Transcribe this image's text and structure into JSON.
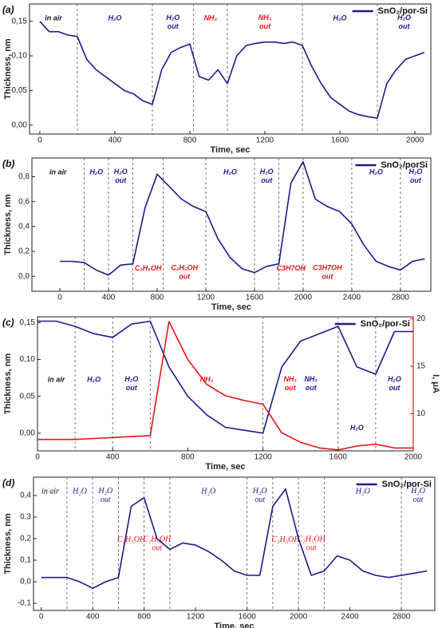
{
  "chart_data": [
    {
      "type": "line",
      "panel_label": "(a)",
      "xlabel": "Time, sec",
      "ylabel": "Thickness, nm",
      "legend": "upper right",
      "x": [
        0,
        50,
        100,
        150,
        200,
        250,
        300,
        350,
        400,
        450,
        500,
        550,
        600,
        650,
        700,
        750,
        800,
        850,
        900,
        950,
        1000,
        1050,
        1100,
        1150,
        1200,
        1250,
        1300,
        1350,
        1400,
        1450,
        1500,
        1550,
        1600,
        1650,
        1700,
        1750,
        1800,
        1850,
        1900,
        1950,
        2000,
        2050
      ],
      "series": [
        {
          "name": "SnO₂/por-Si",
          "color": "#1c1c8a",
          "values": [
            0.15,
            0.135,
            0.135,
            0.13,
            0.128,
            0.095,
            0.08,
            0.07,
            0.06,
            0.05,
            0.045,
            0.035,
            0.03,
            0.08,
            0.105,
            0.112,
            0.117,
            0.07,
            0.065,
            0.08,
            0.06,
            0.1,
            0.115,
            0.118,
            0.12,
            0.12,
            0.118,
            0.12,
            0.115,
            0.085,
            0.06,
            0.04,
            0.03,
            0.02,
            0.015,
            0.012,
            0.01,
            0.06,
            0.08,
            0.095,
            0.1,
            0.105
          ]
        }
      ],
      "xlim": [
        -55,
        2085
      ],
      "xticks": [
        0,
        400,
        800,
        1200,
        1600,
        2000
      ],
      "ylim": [
        -0.013,
        0.175
      ],
      "yticks": [
        {
          "value": 0,
          "label": "0,00"
        },
        {
          "value": 0.05,
          "label": "0,05"
        },
        {
          "value": 0.1,
          "label": "0,10"
        },
        {
          "value": 0.15,
          "label": "0,15"
        }
      ],
      "events": [
        200,
        600,
        820,
        1000,
        1400,
        1800
      ],
      "annotations": [
        [
          {
            "text": "in air",
            "color": "#111111",
            "place": "top"
          }
        ],
        [
          {
            "text": "H₂O",
            "color": "#1c1c8a",
            "place": "top"
          }
        ],
        [
          {
            "text": "H₂O out",
            "color": "#1c1c8a",
            "place": "top",
            "wrap": true
          }
        ],
        [
          {
            "text": "NH₃",
            "color": "#e8141c",
            "place": "top"
          }
        ],
        [
          {
            "text": "NH₃ out",
            "color": "#e8141c",
            "place": "top",
            "wrap": true
          }
        ],
        [
          {
            "text": "H₂O",
            "color": "#1c1c8a",
            "place": "top"
          }
        ],
        [
          {
            "text": "H₂O out",
            "color": "#1c1c8a",
            "place": "top",
            "wrap": true
          }
        ]
      ]
    },
    {
      "type": "line",
      "panel_label": "(b)",
      "xlabel": "Time, sec",
      "ylabel": "Thickness, nm",
      "legend": "upper right",
      "x": [
        0,
        100,
        200,
        300,
        400,
        500,
        600,
        700,
        800,
        900,
        1000,
        1100,
        1200,
        1300,
        1400,
        1500,
        1600,
        1700,
        1800,
        1900,
        2000,
        2100,
        2200,
        2300,
        2400,
        2500,
        2600,
        2700,
        2800,
        2900,
        3000
      ],
      "series": [
        {
          "name": "SnO₂/porSi",
          "color": "#1c1c8a",
          "values": [
            0.12,
            0.12,
            0.11,
            0.05,
            0.01,
            0.09,
            0.1,
            0.55,
            0.82,
            0.72,
            0.62,
            0.56,
            0.52,
            0.3,
            0.15,
            0.06,
            0.03,
            0.08,
            0.1,
            0.75,
            0.92,
            0.62,
            0.56,
            0.52,
            0.42,
            0.25,
            0.12,
            0.08,
            0.05,
            0.12,
            0.14
          ]
        }
      ],
      "xlim": [
        -230,
        3050
      ],
      "xticks": [
        0,
        400,
        800,
        1200,
        1600,
        2000,
        2400,
        2800
      ],
      "ylim": [
        -0.12,
        0.95
      ],
      "yticks": [
        {
          "value": 0,
          "label": "0,0"
        },
        {
          "value": 0.2,
          "label": "0,2"
        },
        {
          "value": 0.4,
          "label": "0,4"
        },
        {
          "value": 0.6,
          "label": "0,6"
        },
        {
          "value": 0.8,
          "label": "0,8"
        }
      ],
      "events": [
        200,
        400,
        600,
        850,
        1200,
        1600,
        1800,
        2000,
        2400,
        2800
      ],
      "annotations": [
        [
          {
            "text": "in air",
            "color": "#111111",
            "place": "top"
          }
        ],
        [
          {
            "text": "H₂O",
            "color": "#1c1c8a",
            "place": "top"
          }
        ],
        [
          {
            "text": "H₂O out",
            "color": "#1c1c8a",
            "place": "top",
            "wrap": true
          }
        ],
        [
          {
            "text": "C₂H₅OH",
            "color": "#e8141c",
            "place": "bottom"
          }
        ],
        [
          {
            "text": "C₂H₅OH out",
            "color": "#e8141c",
            "place": "bottom",
            "wrap": true
          }
        ],
        [
          {
            "text": "H₂O",
            "color": "#1c1c8a",
            "place": "top"
          }
        ],
        [
          {
            "text": "H₂O out",
            "color": "#1c1c8a",
            "place": "top",
            "wrap": true
          }
        ],
        [
          {
            "text": "C3H7OH",
            "color": "#e8141c",
            "place": "bottom"
          }
        ],
        [
          {
            "text": "C3H7OH out",
            "color": "#e8141c",
            "place": "bottom",
            "wrap": true
          }
        ],
        [
          {
            "text": "H₂O",
            "color": "#1c1c8a",
            "place": "top"
          }
        ],
        [
          {
            "text": "H₂O out",
            "color": "#1c1c8a",
            "place": "top",
            "wrap": true
          }
        ]
      ]
    },
    {
      "type": "line",
      "panel_label": "(c)",
      "xlabel": "Time, sec",
      "ylabel": "Thickness, nm",
      "y2label": "I, μA",
      "y2color": "#e8141c",
      "legend": "upper right",
      "x": [
        0,
        100,
        200,
        300,
        400,
        500,
        600,
        700,
        800,
        900,
        1000,
        1100,
        1200,
        1300,
        1400,
        1500,
        1600,
        1700,
        1800,
        1900,
        2000
      ],
      "series": [
        {
          "name": "SnO₂/por-Si",
          "color": "#1c1c8a",
          "values": [
            0.152,
            0.152,
            0.145,
            0.135,
            0.13,
            0.148,
            0.152,
            0.09,
            0.05,
            0.025,
            0.008,
            0.004,
            0.0,
            0.09,
            0.125,
            0.135,
            0.145,
            0.09,
            0.08,
            0.138,
            0.138
          ]
        },
        {
          "color": "#e8141c",
          "axis": "y2",
          "values": [
            7.3,
            7.3,
            7.3,
            7.4,
            7.5,
            7.6,
            7.7,
            19.7,
            15.7,
            13.1,
            11.9,
            11.4,
            11.0,
            8.0,
            7.0,
            6.4,
            6.2,
            6.6,
            6.8,
            6.4,
            6.4
          ]
        }
      ],
      "xlim": [
        0,
        2000
      ],
      "xticks": [
        0,
        400,
        800,
        1200,
        1600,
        2000
      ],
      "ylim": [
        -0.024,
        0.158
      ],
      "yticks": [
        {
          "value": 0,
          "label": "0,00"
        },
        {
          "value": 0.05,
          "label": "0,05"
        },
        {
          "value": 0.1,
          "label": "0,10"
        },
        {
          "value": 0.15,
          "label": "0,15"
        }
      ],
      "y2lim": [
        6.1,
        20.2
      ],
      "y2ticks": [
        10,
        15,
        20
      ],
      "events": [
        200,
        400,
        600,
        1200,
        1600,
        1800
      ],
      "annotations": [
        [
          {
            "text": "in air",
            "color": "#111111",
            "place": "middle"
          }
        ],
        [
          {
            "text": "H₂O",
            "color": "#1c1c8a",
            "place": "middle"
          }
        ],
        [
          {
            "text": "H₂O out",
            "color": "#1c1c8a",
            "place": "middle",
            "wrap": true
          }
        ],
        [
          {
            "text": "NH₃",
            "color": "#e8141c",
            "place": "middle"
          }
        ],
        [
          {
            "text": "NH₃ out",
            "color": "#e8141c",
            "place": "middle",
            "wrap": true
          },
          {
            "text": "NH₃ out",
            "color": "#1c1c8a",
            "place": "middle",
            "wrap": true
          }
        ],
        [
          {
            "text": "H₂O",
            "color": "#1c1c8a",
            "place": "bottom"
          }
        ],
        [
          {
            "text": "H₂O out",
            "color": "#1c1c8a",
            "place": "middle",
            "wrap": true
          }
        ]
      ]
    },
    {
      "type": "line",
      "panel_label": "(d)",
      "xlabel": "Time, sec",
      "ylabel": "Thickness, nm",
      "legend": "upper right",
      "x": [
        0,
        100,
        200,
        300,
        400,
        500,
        600,
        700,
        800,
        900,
        1000,
        1100,
        1200,
        1300,
        1400,
        1500,
        1600,
        1700,
        1800,
        1900,
        2000,
        2100,
        2200,
        2300,
        2400,
        2500,
        2600,
        2700,
        2800,
        2900,
        3000
      ],
      "series": [
        {
          "name": "SnO₂/por-Si",
          "color": "#1c1c8a",
          "values": [
            0.02,
            0.02,
            0.02,
            0.0,
            -0.03,
            0.0,
            0.02,
            0.35,
            0.39,
            0.2,
            0.15,
            0.18,
            0.17,
            0.14,
            0.1,
            0.05,
            0.03,
            0.03,
            0.35,
            0.43,
            0.2,
            0.03,
            0.05,
            0.12,
            0.1,
            0.05,
            0.03,
            0.02,
            0.03,
            0.04,
            0.05
          ]
        }
      ],
      "xlim": [
        -60,
        3060
      ],
      "xticks": [
        0,
        400,
        800,
        1200,
        1600,
        2000,
        2400,
        2800
      ],
      "ylim": [
        -0.133,
        0.485
      ],
      "yticks": [
        {
          "value": -0.1,
          "label": "-0,1"
        },
        {
          "value": 0,
          "label": "0,0"
        },
        {
          "value": 0.1,
          "label": "0,1"
        },
        {
          "value": 0.2,
          "label": "0,2"
        },
        {
          "value": 0.3,
          "label": "0,3"
        },
        {
          "value": 0.4,
          "label": "0,4"
        }
      ],
      "events": [
        200,
        400,
        600,
        800,
        1000,
        1600,
        1800,
        2000,
        2200,
        2800
      ],
      "annotations": [
        [
          {
            "text": "in air",
            "color": "#111111",
            "place": "top"
          }
        ],
        [
          {
            "text": "H₂O",
            "color": "#1c1c8a",
            "place": "top"
          }
        ],
        [
          {
            "text": "H₂O out",
            "color": "#1c1c8a",
            "place": "top",
            "wrap": true
          }
        ],
        [
          {
            "text": "C₂H₅OH",
            "color": "#e8141c",
            "place": "middle"
          }
        ],
        [
          {
            "text": "C₂H₅OH out",
            "color": "#e8141c",
            "place": "middle",
            "wrap": true
          }
        ],
        [
          {
            "text": "H₂O",
            "color": "#1c1c8a",
            "place": "top"
          }
        ],
        [
          {
            "text": "H₂O out",
            "color": "#1c1c8a",
            "place": "top",
            "wrap": true
          }
        ],
        [
          {
            "text": "C₂H₅OH",
            "color": "#e8141c",
            "place": "middle"
          }
        ],
        [
          {
            "text": "C₂H₅OH out",
            "color": "#e8141c",
            "place": "middle",
            "wrap": true
          }
        ],
        [
          {
            "text": "H₂O",
            "color": "#1c1c8a",
            "place": "top"
          }
        ],
        [
          {
            "text": "H₂O out",
            "color": "#1c1c8a",
            "place": "top",
            "wrap": true
          }
        ]
      ]
    }
  ]
}
